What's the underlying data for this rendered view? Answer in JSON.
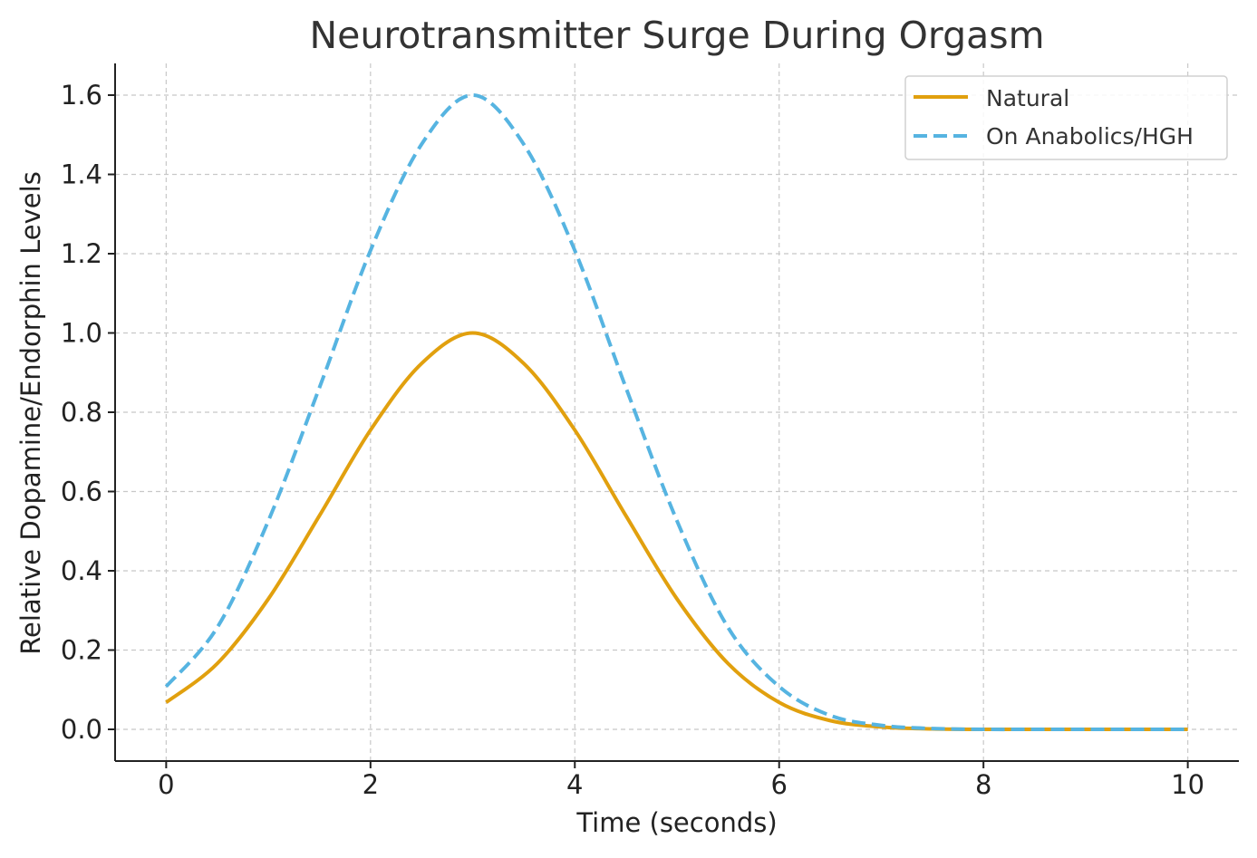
{
  "chart_data": {
    "type": "line",
    "title": "Neurotransmitter Surge During Orgasm",
    "xlabel": "Time (seconds)",
    "ylabel": "Relative Dopamine/Endorphin Levels",
    "xlim": [
      -0.5,
      10.5
    ],
    "ylim": [
      -0.08,
      1.68
    ],
    "xticks": [
      0,
      2,
      4,
      6,
      8,
      10
    ],
    "xtick_labels": [
      "0",
      "2",
      "4",
      "6",
      "8",
      "10"
    ],
    "yticks": [
      0.0,
      0.2,
      0.4,
      0.6,
      0.8,
      1.0,
      1.2,
      1.4,
      1.6
    ],
    "ytick_labels": [
      "0.0",
      "0.2",
      "0.4",
      "0.6",
      "0.8",
      "1.0",
      "1.2",
      "1.4",
      "1.6"
    ],
    "grid": true,
    "legend_position": "top-right",
    "series": [
      {
        "name": "Natural",
        "color": "#E1A00E",
        "style": "solid",
        "x": [
          0,
          0.5,
          1,
          1.5,
          2,
          2.5,
          3,
          3.5,
          4,
          4.5,
          5,
          5.5,
          6,
          6.5,
          7,
          7.5,
          8,
          8.5,
          9,
          9.5,
          10
        ],
        "values": [
          0.068,
          0.166,
          0.329,
          0.539,
          0.755,
          0.923,
          1.0,
          0.923,
          0.755,
          0.539,
          0.329,
          0.166,
          0.068,
          0.022,
          0.006,
          0.001,
          0.0,
          0.0,
          0.0,
          0.0,
          0.0
        ]
      },
      {
        "name": "On Anabolics/HGH",
        "color": "#56B4E1",
        "style": "dashed",
        "x": [
          0,
          0.5,
          1,
          1.5,
          2,
          2.5,
          3,
          3.5,
          4,
          4.5,
          5,
          5.5,
          6,
          6.5,
          7,
          7.5,
          8,
          8.5,
          9,
          9.5,
          10
        ],
        "values": [
          0.108,
          0.257,
          0.526,
          0.862,
          1.208,
          1.476,
          1.6,
          1.476,
          1.208,
          0.862,
          0.526,
          0.257,
          0.108,
          0.035,
          0.01,
          0.002,
          0.0,
          0.0,
          0.0,
          0.0,
          0.0
        ]
      }
    ]
  }
}
